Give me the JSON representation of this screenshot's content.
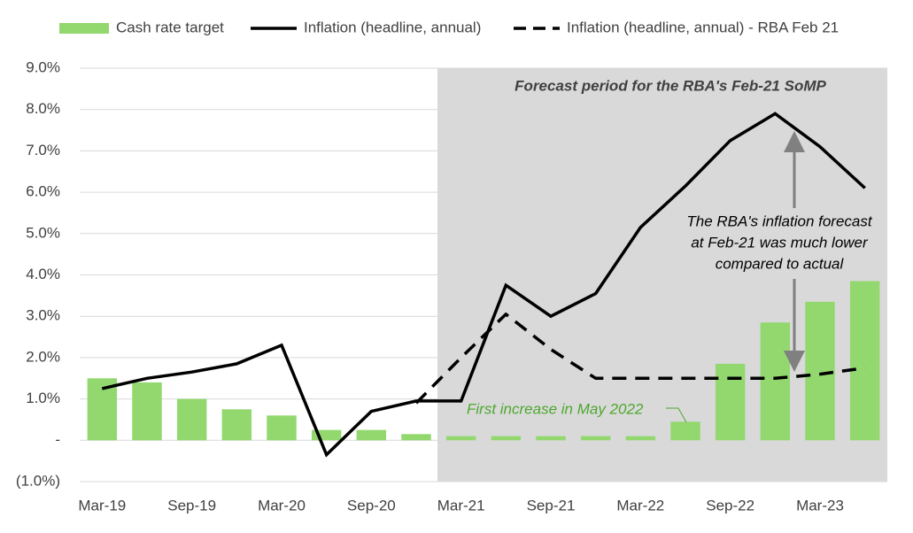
{
  "chart_data": {
    "type": "bar_line",
    "categories": [
      "Mar-19",
      null,
      "Sep-19",
      null,
      "Mar-20",
      null,
      "Sep-20",
      null,
      "Mar-21",
      null,
      "Sep-21",
      null,
      "Mar-22",
      null,
      "Sep-22",
      null,
      "Mar-23",
      null
    ],
    "series": [
      {
        "name": "Cash rate target",
        "type": "bar",
        "color": "#92d86f",
        "values": [
          1.5,
          1.4,
          1.0,
          0.75,
          0.6,
          0.25,
          0.25,
          0.15,
          0.1,
          0.1,
          0.1,
          0.1,
          0.1,
          0.45,
          1.85,
          2.85,
          3.35,
          3.85
        ]
      },
      {
        "name": "Inflation (headline, annual)",
        "type": "line",
        "color": "#000000",
        "dash": false,
        "values": [
          1.25,
          1.5,
          1.65,
          1.85,
          2.3,
          -0.35,
          0.7,
          0.95,
          0.95,
          3.75,
          3.0,
          3.55,
          5.15,
          6.15,
          7.25,
          7.9,
          7.1,
          6.1
        ]
      },
      {
        "name": "Inflation (headline, annual) - RBA Feb 21",
        "type": "line",
        "color": "#000000",
        "dash": true,
        "values": [
          null,
          null,
          null,
          null,
          null,
          null,
          null,
          0.9,
          2.0,
          3.05,
          2.2,
          1.5,
          1.5,
          1.5,
          1.5,
          1.5,
          1.6,
          1.75
        ]
      }
    ],
    "ylim": [
      -1,
      9
    ],
    "yticks": [
      {
        "value": -1,
        "label": "(1.0%)"
      },
      {
        "value": 0,
        "label": "-"
      },
      {
        "value": 1,
        "label": "1.0%"
      },
      {
        "value": 2,
        "label": "2.0%"
      },
      {
        "value": 3,
        "label": "3.0%"
      },
      {
        "value": 4,
        "label": "4.0%"
      },
      {
        "value": 5,
        "label": "5.0%"
      },
      {
        "value": 6,
        "label": "6.0%"
      },
      {
        "value": 7,
        "label": "7.0%"
      },
      {
        "value": 8,
        "label": "8.0%"
      },
      {
        "value": 9,
        "label": "9.0%"
      }
    ],
    "grid": true,
    "legend": "top",
    "annotations": {
      "forecast_period": "Forecast period for the RBA's Feb-21 SoMP",
      "comparison": [
        "The RBA's inflation  forecast",
        "at Feb-21 was much lower",
        "compared to actual"
      ],
      "first_increase": "First increase in May 2022"
    }
  }
}
